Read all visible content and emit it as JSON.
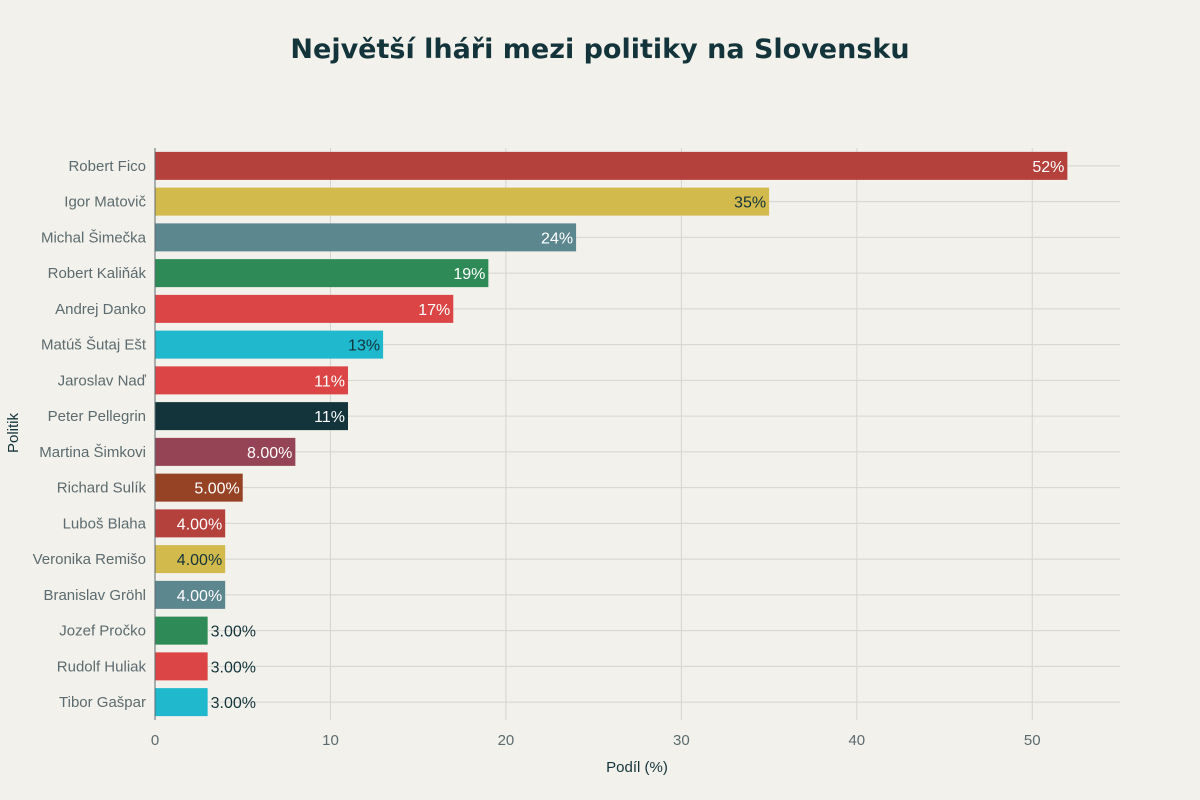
{
  "chart_data": {
    "type": "bar",
    "orientation": "horizontal",
    "title": "Největší lháři mezi politiky na Slovensku",
    "xlabel": "Podíl (%)",
    "ylabel": "Politik",
    "xlim": [
      0,
      55
    ],
    "xticks": [
      0,
      10,
      20,
      30,
      40,
      50
    ],
    "grid": true,
    "categories": [
      "Robert Fico",
      "Igor Matovič",
      "Michal Šimečka",
      "Robert Kaliňák",
      "Andrej Danko",
      "Matúš Šutaj Ešt",
      "Jaroslav Naď",
      "Peter Pellegrin",
      "Martina Šimkovi",
      "Richard Sulík",
      "Luboš Blaha",
      "Veronika Remišo",
      "Branislav Gröhl",
      "Jozef Pročko",
      "Rudolf Huliak",
      "Tibor Gašpar"
    ],
    "values": [
      52,
      35,
      24,
      19,
      17,
      13,
      11,
      11,
      8,
      5,
      4,
      4,
      4,
      3,
      3,
      3
    ],
    "data_labels": [
      "52%",
      "35%",
      "24%",
      "19%",
      "17%",
      "13%",
      "11%",
      "11%",
      "8.00%",
      "5.00%",
      "4.00%",
      "4.00%",
      "4.00%",
      "3.00%",
      "3.00%",
      "3.00%"
    ],
    "colors": [
      "#b4413c",
      "#d2ba4c",
      "#5d878f",
      "#2e8b57",
      "#db4545",
      "#1fb8cd",
      "#db4545",
      "#13343b",
      "#944454",
      "#964325",
      "#b4413c",
      "#d2ba4c",
      "#5d878f",
      "#2e8b57",
      "#db4545",
      "#1fb8cd"
    ],
    "label_colors": [
      "#ffffff",
      "#13343b",
      "#ffffff",
      "#ffffff",
      "#ffffff",
      "#13343b",
      "#ffffff",
      "#ffffff",
      "#ffffff",
      "#ffffff",
      "#ffffff",
      "#13343b",
      "#ffffff",
      "#13343b",
      "#13343b",
      "#13343b"
    ]
  }
}
